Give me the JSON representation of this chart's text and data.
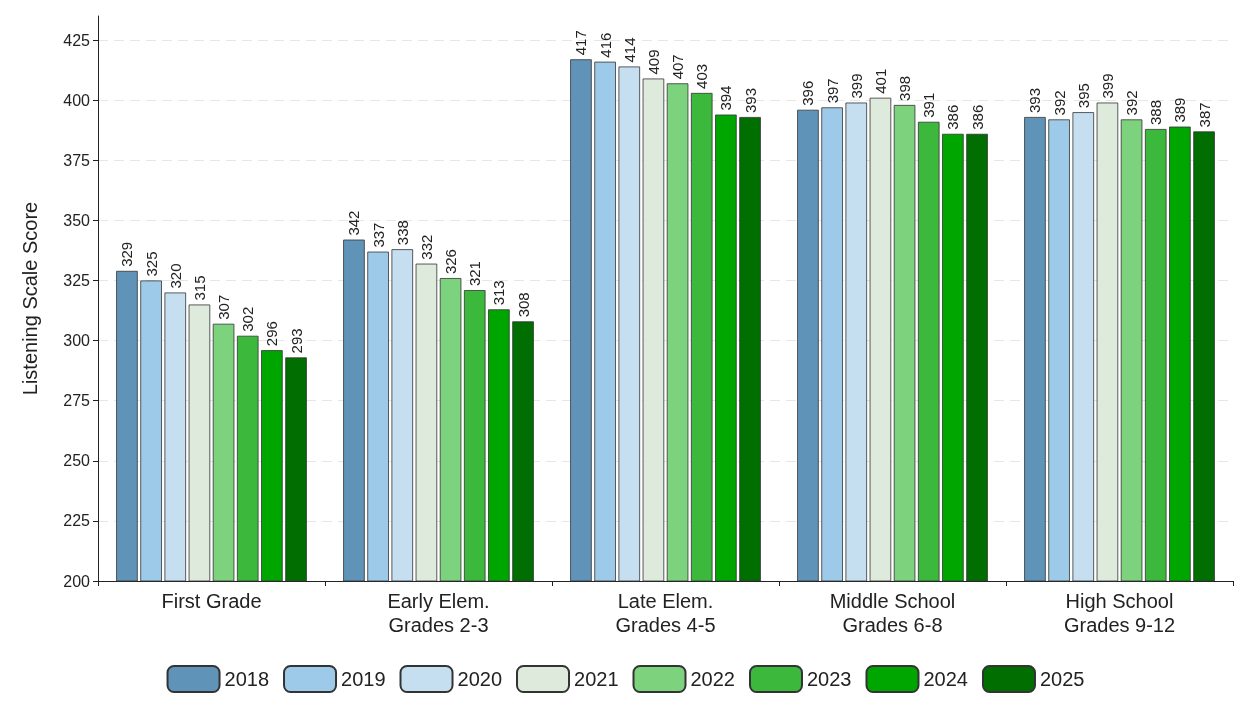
{
  "chart_data": {
    "type": "bar",
    "ylabel": "Listening Scale Score",
    "categories": [
      "First Grade",
      "Early Elem.\nGrades 2-3",
      "Late Elem.\nGrades 4-5",
      "Middle School\nGrades 6-8",
      "High School\nGrades 9-12"
    ],
    "series": [
      {
        "name": "2018",
        "color": "#5f93b8",
        "values": [
          329,
          342,
          417,
          396,
          393
        ]
      },
      {
        "name": "2019",
        "color": "#9ecae9",
        "values": [
          325,
          337,
          416,
          397,
          392
        ]
      },
      {
        "name": "2020",
        "color": "#c6dff0",
        "values": [
          320,
          338,
          414,
          399,
          395
        ]
      },
      {
        "name": "2021",
        "color": "#deeadc",
        "values": [
          315,
          332,
          409,
          401,
          399
        ]
      },
      {
        "name": "2022",
        "color": "#7dd27d",
        "values": [
          307,
          326,
          407,
          398,
          392
        ]
      },
      {
        "name": "2023",
        "color": "#3cb83c",
        "values": [
          302,
          321,
          403,
          391,
          388
        ]
      },
      {
        "name": "2024",
        "color": "#00a600",
        "values": [
          296,
          313,
          394,
          386,
          389
        ]
      },
      {
        "name": "2025",
        "color": "#006e00",
        "values": [
          293,
          308,
          393,
          386,
          387
        ]
      }
    ],
    "ylim": [
      200,
      435
    ],
    "yticks": [
      200,
      225,
      250,
      275,
      300,
      325,
      350,
      375,
      400,
      425
    ],
    "grid": "y",
    "legend": "bottom",
    "data_labels": true
  }
}
